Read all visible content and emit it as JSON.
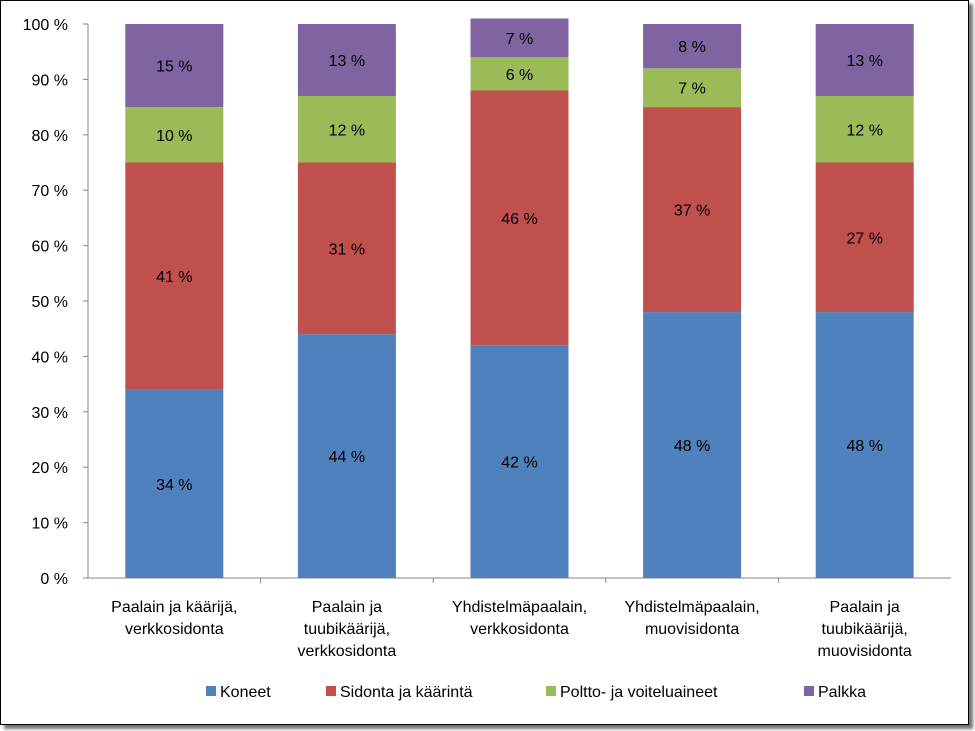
{
  "chart_data": {
    "type": "bar",
    "stacked": true,
    "percent_stacked": true,
    "categories": [
      [
        "Paalain ja kääriјä,",
        "verkkosidonta"
      ],
      [
        "Paalain ja",
        "tuubikäärijä,",
        "verkkosidonta"
      ],
      [
        "Yhdistelmäpaalain,",
        "verkkosidonta"
      ],
      [
        "Yhdistelmäpaalain,",
        "muovisidonta"
      ],
      [
        "Paalain ja",
        "tuubikäärijä,",
        "muovisidonta"
      ]
    ],
    "series": [
      {
        "name": "Koneet",
        "color": "#4F81BD",
        "values": [
          34,
          44,
          42,
          48,
          48
        ],
        "labels": [
          "34 %",
          "44 %",
          "42 %",
          "48 %",
          "48 %"
        ]
      },
      {
        "name": "Sidonta ja käärintä",
        "color": "#C0504D",
        "values": [
          41,
          31,
          46,
          37,
          27
        ],
        "labels": [
          "41 %",
          "31 %",
          "46 %",
          "37 %",
          "27 %"
        ]
      },
      {
        "name": "Poltto- ja voiteluaineet",
        "color": "#9BBB59",
        "values": [
          10,
          12,
          6,
          7,
          12
        ],
        "labels": [
          "10 %",
          "12 %",
          "6 %",
          "7 %",
          "12 %"
        ]
      },
      {
        "name": "Palkka",
        "color": "#8064A2",
        "values": [
          15,
          13,
          7,
          8,
          13
        ],
        "labels": [
          "15 %",
          "13 %",
          "7 %",
          "8 %",
          "13 %"
        ]
      }
    ],
    "yticks": [
      "0 %",
      "10 %",
      "20 %",
      "30 %",
      "40 %",
      "50 %",
      "60 %",
      "70 %",
      "80 %",
      "90 %",
      "100 %"
    ],
    "ylim": [
      0,
      100
    ],
    "grid": false,
    "legend_position": "bottom"
  }
}
